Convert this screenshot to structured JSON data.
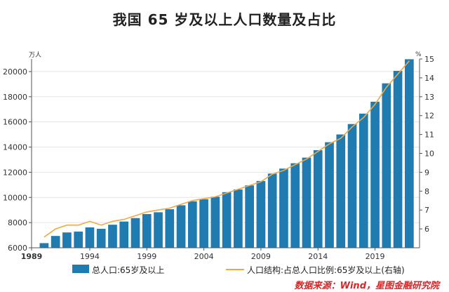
{
  "chart_data": {
    "type": "bar",
    "title": "我国 65 岁及以上人口数量及占比",
    "left_axis_unit": "万人",
    "right_axis_unit": "%",
    "years": [
      1990,
      1991,
      1992,
      1993,
      1994,
      1995,
      1996,
      1997,
      1998,
      1999,
      2000,
      2001,
      2002,
      2003,
      2004,
      2005,
      2006,
      2007,
      2008,
      2009,
      2010,
      2011,
      2012,
      2013,
      2014,
      2015,
      2016,
      2017,
      2018,
      2019,
      2020,
      2021,
      2022
    ],
    "x_tick_labels": [
      "1989",
      "1994",
      "1999",
      "2004",
      "2009",
      "2014",
      "2019"
    ],
    "ylim_left": [
      6000,
      21000
    ],
    "yticks_left": [
      6000,
      8000,
      10000,
      12000,
      14000,
      16000,
      18000,
      20000
    ],
    "ylim_right": [
      5,
      15
    ],
    "yticks_right": [
      6,
      7,
      8,
      9,
      10,
      11,
      12,
      13,
      14,
      15
    ],
    "series": [
      {
        "name": "总人口:65岁及以上",
        "kind": "bar",
        "axis": "left",
        "color": "#1f7bb0",
        "values": [
          6368,
          6938,
          7218,
          7289,
          7622,
          7510,
          7833,
          8085,
          8359,
          8679,
          8821,
          9062,
          9377,
          9692,
          9857,
          10055,
          10419,
          10636,
          10956,
          11307,
          11894,
          12288,
          12714,
          13161,
          13755,
          14386,
          15003,
          15831,
          16658,
          17603,
          19064,
          20056,
          20978
        ]
      },
      {
        "name": "人口结构:占总人口比例:65岁及以上(右轴)",
        "kind": "line",
        "axis": "right",
        "color": "#f0a844",
        "values": [
          5.57,
          6.0,
          6.2,
          6.2,
          6.4,
          6.2,
          6.4,
          6.5,
          6.7,
          6.9,
          7.0,
          7.1,
          7.3,
          7.5,
          7.6,
          7.7,
          7.9,
          8.1,
          8.3,
          8.5,
          8.9,
          9.1,
          9.4,
          9.7,
          10.1,
          10.5,
          10.8,
          11.4,
          11.9,
          12.6,
          13.5,
          14.2,
          14.9
        ]
      }
    ],
    "grid": "horizontal",
    "legend_position": "bottom",
    "source": "数据来源：Wind，星图金融研究院"
  }
}
